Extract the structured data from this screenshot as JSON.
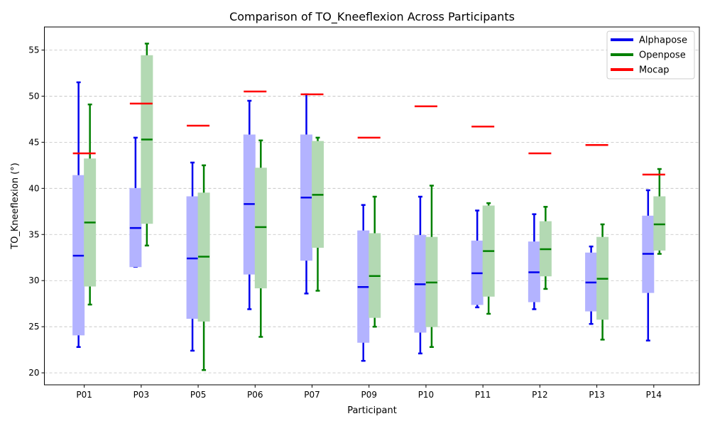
{
  "chart_data": {
    "type": "box",
    "title": "Comparison of TO_Kneeflexion Across Participants",
    "xlabel": "Participant",
    "ylabel": "TO_Kneeflexion (°)",
    "ylim": [
      18.7,
      57.5
    ],
    "yticks": [
      20,
      25,
      30,
      35,
      40,
      45,
      50,
      55
    ],
    "grid": "y-dashed",
    "legend_position": "top-right",
    "categories": [
      "P01",
      "P03",
      "P05",
      "P06",
      "P07",
      "P09",
      "P10",
      "P11",
      "P12",
      "P13",
      "P14"
    ],
    "series": [
      {
        "name": "Alphapose",
        "color": "#0000ee",
        "fill": "#b3b3ff",
        "boxes": [
          {
            "whislo": 22.8,
            "q1": 24.1,
            "med": 32.7,
            "q3": 41.4,
            "whishi": 51.5
          },
          {
            "whislo": 31.5,
            "q1": 31.5,
            "med": 35.7,
            "q3": 40.0,
            "whishi": 45.5
          },
          {
            "whislo": 22.4,
            "q1": 25.9,
            "med": 32.4,
            "q3": 39.1,
            "whishi": 42.8
          },
          {
            "whislo": 26.9,
            "q1": 30.7,
            "med": 38.3,
            "q3": 45.8,
            "whishi": 49.5
          },
          {
            "whislo": 28.6,
            "q1": 32.2,
            "med": 39.0,
            "q3": 45.8,
            "whishi": 50.2
          },
          {
            "whislo": 21.3,
            "q1": 23.3,
            "med": 29.3,
            "q3": 35.4,
            "whishi": 38.2
          },
          {
            "whislo": 22.1,
            "q1": 24.4,
            "med": 29.6,
            "q3": 34.9,
            "whishi": 39.1
          },
          {
            "whislo": 27.1,
            "q1": 27.4,
            "med": 30.8,
            "q3": 34.3,
            "whishi": 37.6
          },
          {
            "whislo": 26.9,
            "q1": 27.7,
            "med": 30.9,
            "q3": 34.2,
            "whishi": 37.2
          },
          {
            "whislo": 25.3,
            "q1": 26.7,
            "med": 29.8,
            "q3": 33.0,
            "whishi": 33.7
          },
          {
            "whislo": 23.5,
            "q1": 28.7,
            "med": 32.9,
            "q3": 37.0,
            "whishi": 39.8
          }
        ]
      },
      {
        "name": "Openpose",
        "color": "#008000",
        "fill": "#b3d9b3",
        "boxes": [
          {
            "whislo": 27.4,
            "q1": 29.4,
            "med": 36.3,
            "q3": 43.2,
            "whishi": 49.1
          },
          {
            "whislo": 33.8,
            "q1": 36.2,
            "med": 45.3,
            "q3": 54.4,
            "whishi": 55.7
          },
          {
            "whislo": 20.3,
            "q1": 25.6,
            "med": 32.6,
            "q3": 39.5,
            "whishi": 42.5
          },
          {
            "whislo": 23.9,
            "q1": 29.2,
            "med": 35.8,
            "q3": 42.2,
            "whishi": 45.2
          },
          {
            "whislo": 28.9,
            "q1": 33.6,
            "med": 39.3,
            "q3": 45.1,
            "whishi": 45.5
          },
          {
            "whislo": 25.0,
            "q1": 26.0,
            "med": 30.5,
            "q3": 35.1,
            "whishi": 39.1
          },
          {
            "whislo": 22.8,
            "q1": 25.0,
            "med": 29.8,
            "q3": 34.7,
            "whishi": 40.3
          },
          {
            "whislo": 26.4,
            "q1": 28.3,
            "med": 33.2,
            "q3": 38.1,
            "whishi": 38.4
          },
          {
            "whislo": 29.1,
            "q1": 30.5,
            "med": 33.4,
            "q3": 36.4,
            "whishi": 38.0
          },
          {
            "whislo": 23.6,
            "q1": 25.8,
            "med": 30.2,
            "q3": 34.7,
            "whishi": 36.1
          },
          {
            "whislo": 32.9,
            "q1": 33.3,
            "med": 36.1,
            "q3": 39.1,
            "whishi": 42.1
          }
        ]
      },
      {
        "name": "Mocap",
        "color": "#ff0000",
        "values": [
          43.8,
          49.2,
          46.8,
          50.5,
          50.2,
          45.5,
          48.9,
          46.7,
          43.8,
          44.7,
          41.5
        ]
      }
    ]
  }
}
